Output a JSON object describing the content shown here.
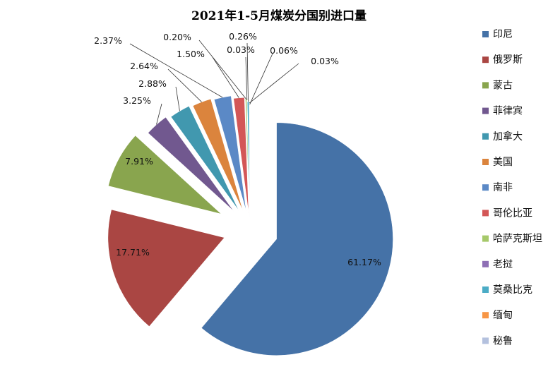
{
  "chart_data": {
    "type": "pie",
    "title": "2021年1-5月煤炭分国别进口量",
    "categories": [
      "印尼",
      "俄罗斯",
      "蒙古",
      "菲律宾",
      "加拿大",
      "美国",
      "南非",
      "哥伦比亚",
      "哈萨克斯坦",
      "老挝",
      "莫桑比克",
      "缅甸",
      "秘鲁"
    ],
    "values": [
      61.17,
      17.71,
      7.91,
      3.25,
      2.88,
      2.64,
      2.37,
      1.5,
      0.2,
      0.03,
      0.26,
      0.03,
      0.06
    ],
    "labels": [
      "61.17%",
      "17.71%",
      "7.91%",
      "3.25%",
      "2.88%",
      "2.64%",
      "2.37%",
      "1.50%",
      "0.20%",
      "0.03%",
      "0.26%",
      "0.03%",
      "0.06%"
    ],
    "colors": [
      "#4572A7",
      "#AA4643",
      "#89A54E",
      "#71588F",
      "#4198AF",
      "#DB843D",
      "#5B89C6",
      "#D35757",
      "#A6C96A",
      "#8E6FB5",
      "#4BACC6",
      "#F79646",
      "#B4C1DE"
    ],
    "legend_position": "right"
  }
}
